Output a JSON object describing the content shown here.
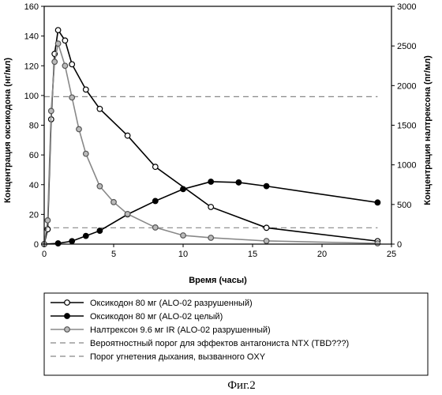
{
  "chart_data": {
    "type": "line",
    "xlabel": "Время (часы)",
    "ylabel_left": "Концентрация оксикодона (нг/мл)",
    "ylabel_right": "Концентрация налтрексона (пг/мл)",
    "xlim": [
      0,
      25
    ],
    "ylim_left": [
      0,
      160
    ],
    "ylim_right": [
      0,
      3000
    ],
    "x_ticks": [
      0,
      5,
      10,
      15,
      20,
      25
    ],
    "y_left_ticks": [
      0,
      20,
      40,
      60,
      80,
      100,
      120,
      140,
      160
    ],
    "y_right_ticks": [
      0,
      500,
      1000,
      1500,
      2000,
      2500,
      3000
    ],
    "grid": false,
    "legend_position": "bottom",
    "series": [
      {
        "name": "Оксикодон 80 мг (ALO-02 разрушенный)",
        "axis": "left",
        "marker": "open",
        "color": "#000000",
        "x": [
          0,
          0.25,
          0.5,
          0.75,
          1,
          1.5,
          2,
          3,
          4,
          6,
          8,
          12,
          16,
          24
        ],
        "y": [
          0,
          10,
          84,
          128,
          144,
          137,
          121,
          104,
          91,
          73,
          52,
          25,
          11,
          2
        ]
      },
      {
        "name": "Оксикодон 80 мг (ALO-02 целый)",
        "axis": "left",
        "marker": "filled",
        "color": "#000000",
        "x": [
          0,
          1,
          2,
          3,
          4,
          6,
          8,
          10,
          12,
          14,
          16,
          24
        ],
        "y": [
          0,
          0.5,
          2,
          5.5,
          9,
          20,
          29,
          37,
          42,
          41.5,
          39,
          28
        ]
      },
      {
        "name": "Налтрексон 9.6 мг IR (ALO-02 разрушенный)",
        "axis": "right",
        "marker": "gray",
        "color": "#888888",
        "x": [
          0,
          0.25,
          0.5,
          0.75,
          1,
          1.5,
          2,
          2.5,
          3,
          4,
          5,
          6,
          8,
          10,
          12,
          16,
          24
        ],
        "y": [
          0,
          300,
          1680,
          2300,
          2530,
          2250,
          1850,
          1450,
          1140,
          730,
          530,
          380,
          210,
          110,
          80,
          40,
          10
        ]
      }
    ],
    "reference_lines": [
      {
        "name": "Вероятностный порог для эффектов антагониста NTX (TBD???)",
        "axis": "right",
        "value": 1860,
        "color": "#888888",
        "style": "dashed"
      },
      {
        "name": "Порог угнетения дыхания, вызванного OXY",
        "axis": "left",
        "value": 11,
        "color": "#888888",
        "style": "dashed"
      }
    ]
  },
  "caption": "Фиг.2"
}
